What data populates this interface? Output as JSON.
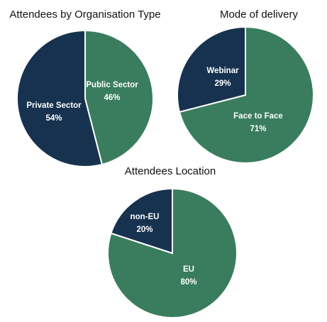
{
  "chart_data": [
    {
      "type": "pie",
      "title": "Attendees by Organisation Type",
      "slices": [
        {
          "label": "Public Sector",
          "value": 46,
          "value_label": "46%",
          "color": "#3A7D5E"
        },
        {
          "label": "Private Sector",
          "value": 54,
          "value_label": "54%",
          "color": "#17324F"
        }
      ]
    },
    {
      "type": "pie",
      "title": "Mode of delivery",
      "slices": [
        {
          "label": "Face to Face",
          "value": 71,
          "value_label": "71%",
          "color": "#3A7D5E"
        },
        {
          "label": "Webinar",
          "value": 29,
          "value_label": "29%",
          "color": "#17324F"
        }
      ]
    },
    {
      "type": "pie",
      "title": "Attendees Location",
      "slices": [
        {
          "label": "EU",
          "value": 80,
          "value_label": "80%",
          "color": "#3A7D5E"
        },
        {
          "label": "non-EU",
          "value": 20,
          "value_label": "20%",
          "color": "#17324F"
        }
      ]
    }
  ]
}
